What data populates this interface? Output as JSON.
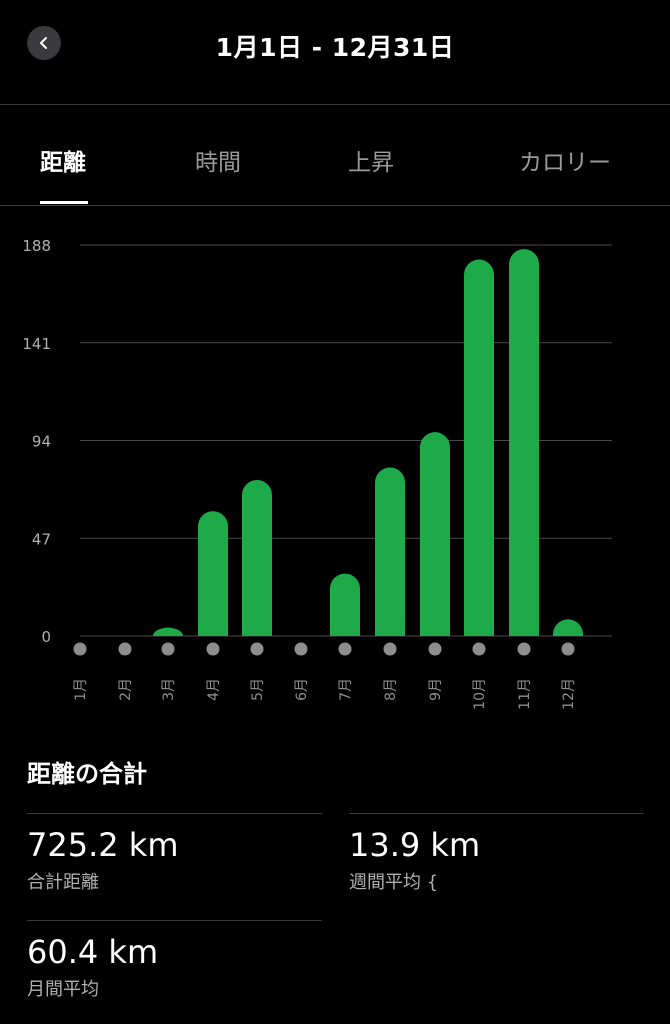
{
  "header": {
    "title": "1月1日 - 12月31日"
  },
  "tabs": [
    {
      "label": "距離",
      "active": true
    },
    {
      "label": "時間",
      "active": false
    },
    {
      "label": "上昇",
      "active": false
    },
    {
      "label": "カロリー",
      "active": false
    }
  ],
  "chart_data": {
    "type": "bar",
    "categories": [
      "1月",
      "2月",
      "3月",
      "4月",
      "5月",
      "6月",
      "7月",
      "8月",
      "9月",
      "10月",
      "11月",
      "12月"
    ],
    "values": [
      0,
      0,
      4,
      60,
      75,
      0,
      30,
      81,
      98,
      181,
      186,
      8
    ],
    "yticks": [
      0,
      47,
      94,
      141,
      188
    ],
    "ylim": [
      0,
      188
    ],
    "color": "#1faa4a",
    "grid": true
  },
  "summary": {
    "title": "距離の合計",
    "stats": [
      {
        "value": "725.2 km",
        "label": "合計距離"
      },
      {
        "value": "13.9 km",
        "label": "週間平均 {"
      },
      {
        "value": "60.4 km",
        "label": "月間平均"
      }
    ]
  },
  "colors": {
    "accent": "#1faa4a",
    "background": "#000000",
    "dot": "#8e8e8e"
  }
}
